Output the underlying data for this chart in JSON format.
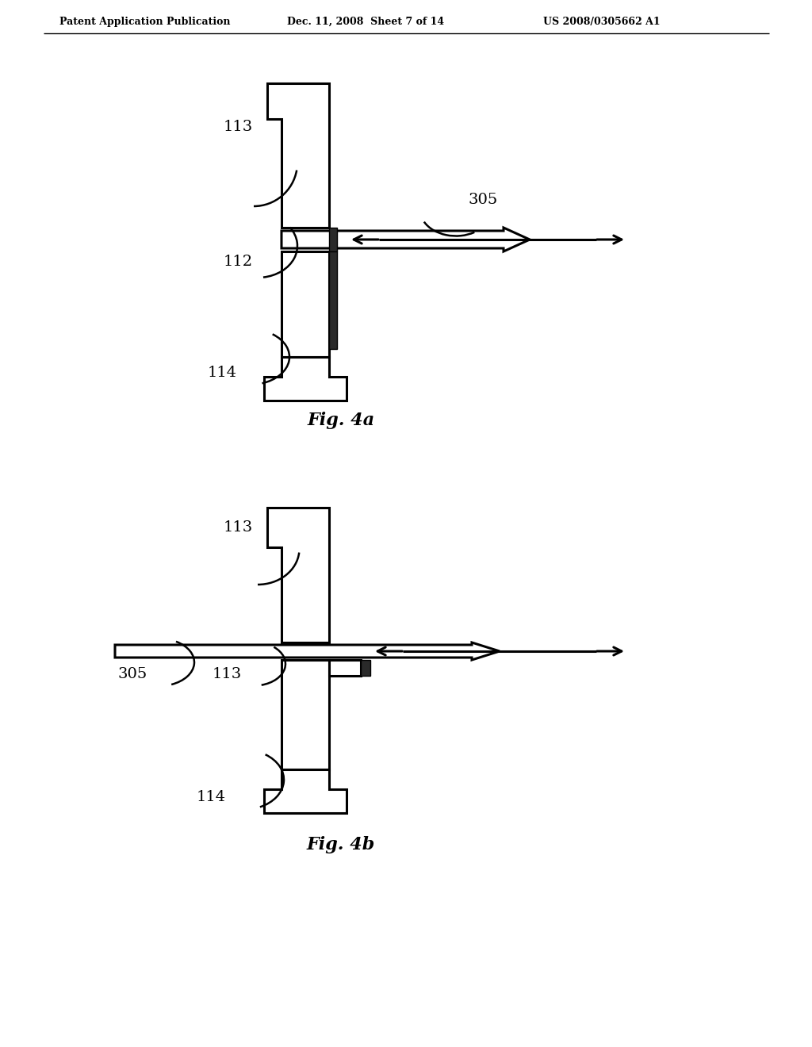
{
  "bg_color": "#ffffff",
  "header_left": "Patent Application Publication",
  "header_mid": "Dec. 11, 2008  Sheet 7 of 14",
  "header_right": "US 2008/0305662 A1",
  "fig4a_caption": "Fig. 4a",
  "fig4b_caption": "Fig. 4b"
}
